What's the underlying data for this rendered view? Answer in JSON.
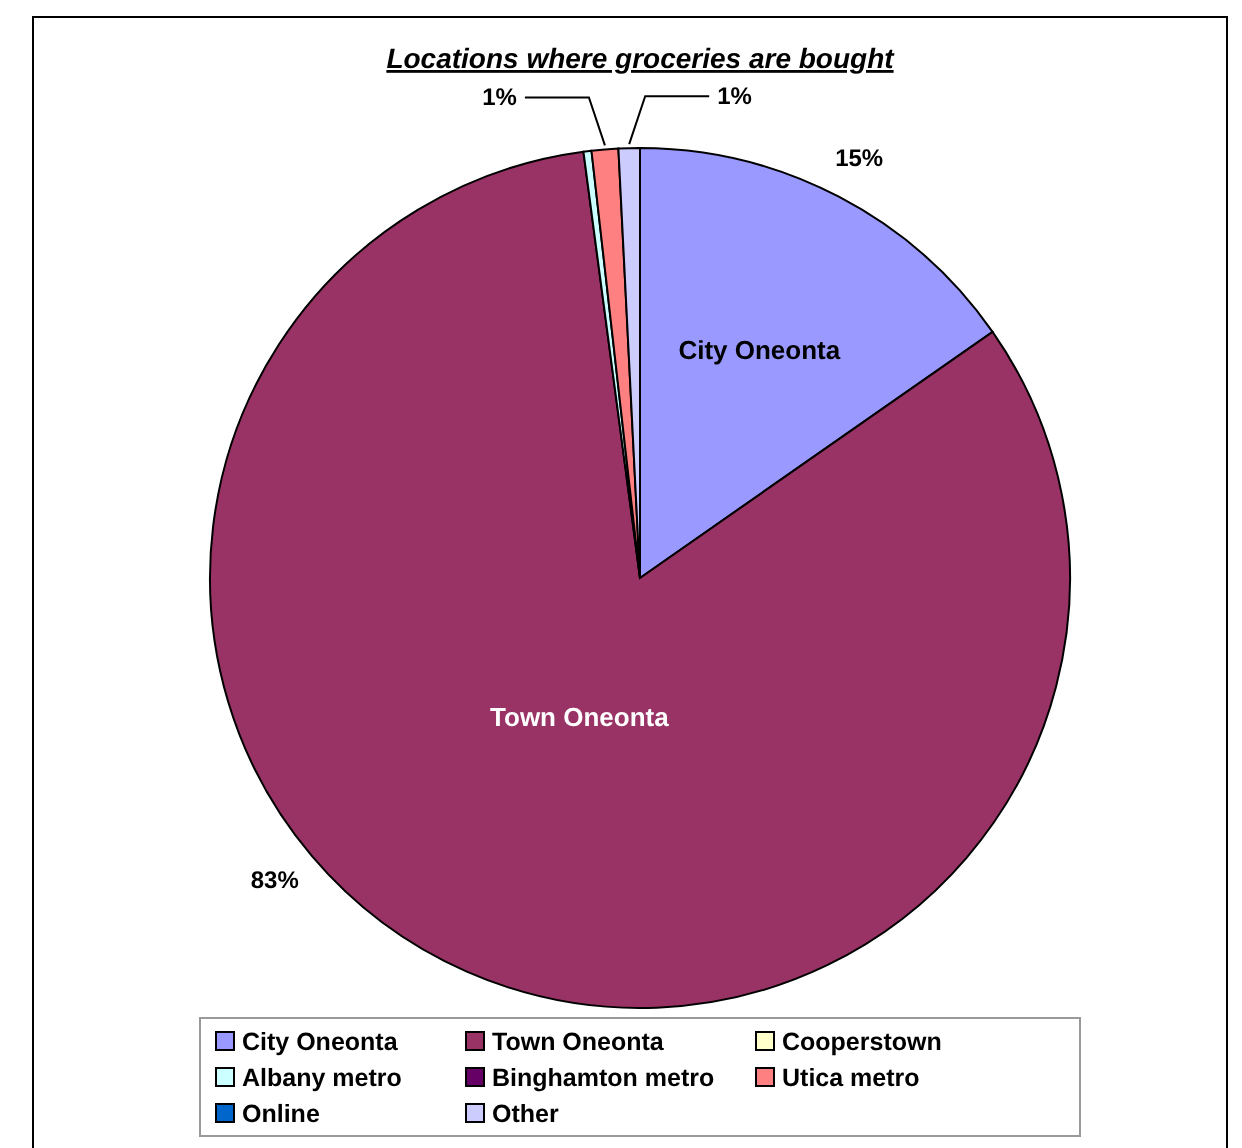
{
  "chart_data": {
    "type": "pie",
    "title": "Locations where groceries are bought",
    "categories": [
      "City Oneonta",
      "Town Oneonta",
      "Cooperstown",
      "Albany metro",
      "Binghamton metro",
      "Utica metro",
      "Online",
      "Other"
    ],
    "values": [
      15.3,
      82.6,
      0,
      0.3,
      0,
      1.0,
      0,
      0.8
    ],
    "colors": [
      "#9999ff",
      "#993366",
      "#ffffcc",
      "#ccffff",
      "#660066",
      "#ff8080",
      "#0066cc",
      "#ccccff"
    ],
    "value_labels": [
      "15%",
      "83%",
      null,
      null,
      null,
      "1%",
      null,
      "1%"
    ],
    "annotations": [
      {
        "text": "City Oneonta",
        "x": "City Oneonta"
      },
      {
        "text": "Town Oneonta",
        "x": "Town Oneonta"
      }
    ],
    "legend": "bottom"
  }
}
